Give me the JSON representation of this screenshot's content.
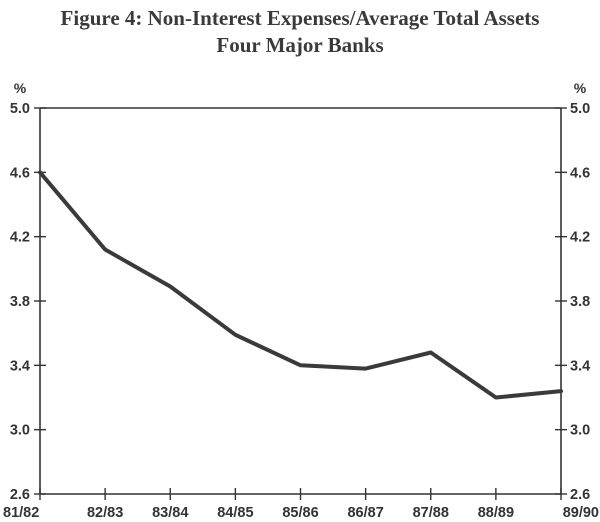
{
  "chart_data": {
    "type": "line",
    "title": "Figure 4: Non-Interest Expenses/Average Total Assets",
    "subtitle": "Four Major Banks",
    "ylabel_left": "%",
    "ylabel_right": "%",
    "xlabel": "",
    "ylim": [
      2.6,
      5.0
    ],
    "yticks": [
      "5.0",
      "4.6",
      "4.2",
      "3.8",
      "3.4",
      "3.0",
      "2.6"
    ],
    "categories": [
      "81/82",
      "82/83",
      "83/84",
      "84/85",
      "85/86",
      "86/87",
      "87/88",
      "88/89",
      "89/90"
    ],
    "series": [
      {
        "name": "Non-Interest Expenses/Average Total Assets",
        "values": [
          4.6,
          4.12,
          3.89,
          3.59,
          3.4,
          3.38,
          3.48,
          3.2,
          3.24
        ]
      }
    ],
    "grid": false,
    "legend": "none",
    "colors": {
      "line": "#3a3a3a",
      "axis": "#333333",
      "text": "#333333"
    }
  }
}
